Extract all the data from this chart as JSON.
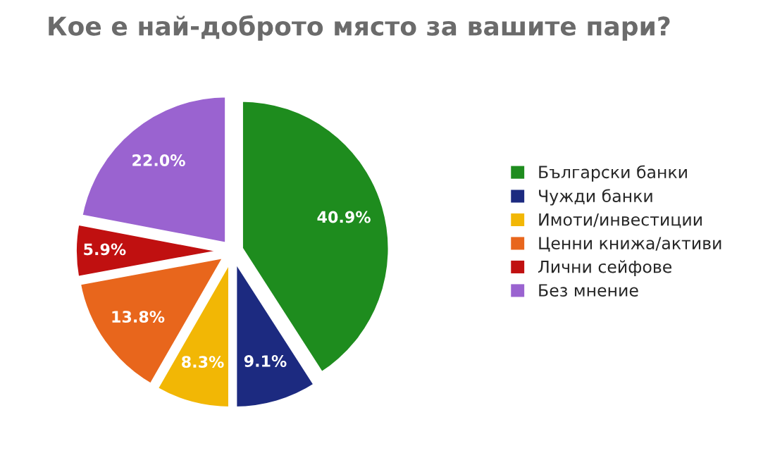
{
  "chart_data": {
    "type": "pie",
    "title": "Кое е най-доброто място за вашите пари?",
    "categories": [
      "Български банки",
      "Чужди банки",
      "Имоти/инвестиции",
      "Ценни книжа/активи",
      "Лични сейфове",
      "Без мнение"
    ],
    "values": [
      40.9,
      9.1,
      8.3,
      13.8,
      5.9,
      22.0
    ],
    "value_labels": [
      "40.9%",
      "9.1%",
      "8.3%",
      "13.8%",
      "5.9%",
      "22.0%"
    ],
    "colors": [
      "#1e8c1e",
      "#1c2a80",
      "#f2b705",
      "#e8661c",
      "#c01010",
      "#9a63d0"
    ],
    "legend": "right"
  }
}
